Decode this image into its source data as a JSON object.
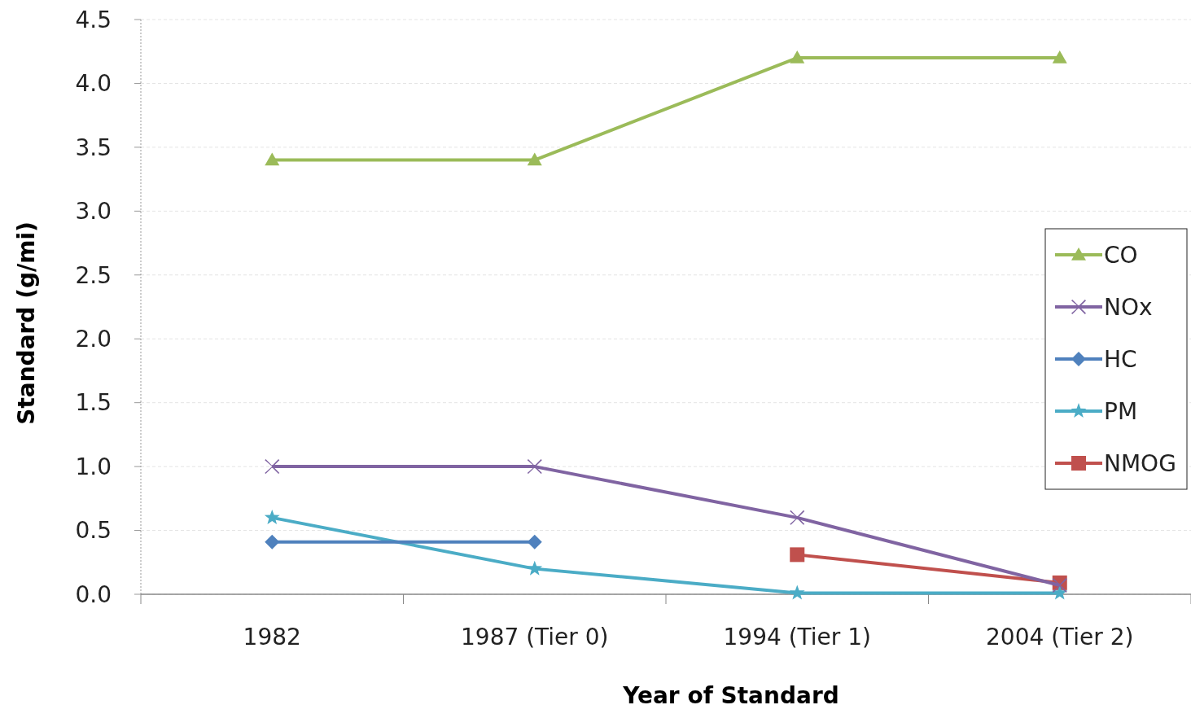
{
  "chart_data": {
    "type": "line",
    "xlabel": "Year of Standard",
    "ylabel": "Standard (g/mi)",
    "categories": [
      "1982",
      "1987 (Tier 0)",
      "1994 (Tier 1)",
      "2004 (Tier 2)"
    ],
    "ylim": [
      0,
      4.5
    ],
    "yticks": [
      {
        "value": 0,
        "label": "0.0"
      },
      {
        "value": 0.5,
        "label": "0.5"
      },
      {
        "value": 1,
        "label": "1.0"
      },
      {
        "value": 1.5,
        "label": "1.5"
      },
      {
        "value": 2,
        "label": "2.0"
      },
      {
        "value": 2.5,
        "label": "2.5"
      },
      {
        "value": 3,
        "label": "3.0"
      },
      {
        "value": 3.5,
        "label": "3.5"
      },
      {
        "value": 4,
        "label": "4.0"
      },
      {
        "value": 4.5,
        "label": "4.5"
      }
    ],
    "grid": "y",
    "legend": "right",
    "series": [
      {
        "name": "CO",
        "color": "#9bbb59",
        "marker": "triangle",
        "values": [
          3.4,
          3.4,
          4.2,
          4.2
        ]
      },
      {
        "name": "NOx",
        "color": "#8064a2",
        "marker": "cross",
        "values": [
          1.0,
          1.0,
          0.6,
          0.07
        ]
      },
      {
        "name": "HC",
        "color": "#4f81bd",
        "marker": "diamond",
        "values": [
          0.41,
          0.41,
          null,
          null
        ]
      },
      {
        "name": "PM",
        "color": "#4bacc6",
        "marker": "star",
        "values": [
          0.6,
          0.2,
          0.01,
          0.01
        ]
      },
      {
        "name": "NMOG",
        "color": "#c0504d",
        "marker": "square",
        "values": [
          null,
          null,
          0.31,
          0.09
        ]
      }
    ]
  }
}
